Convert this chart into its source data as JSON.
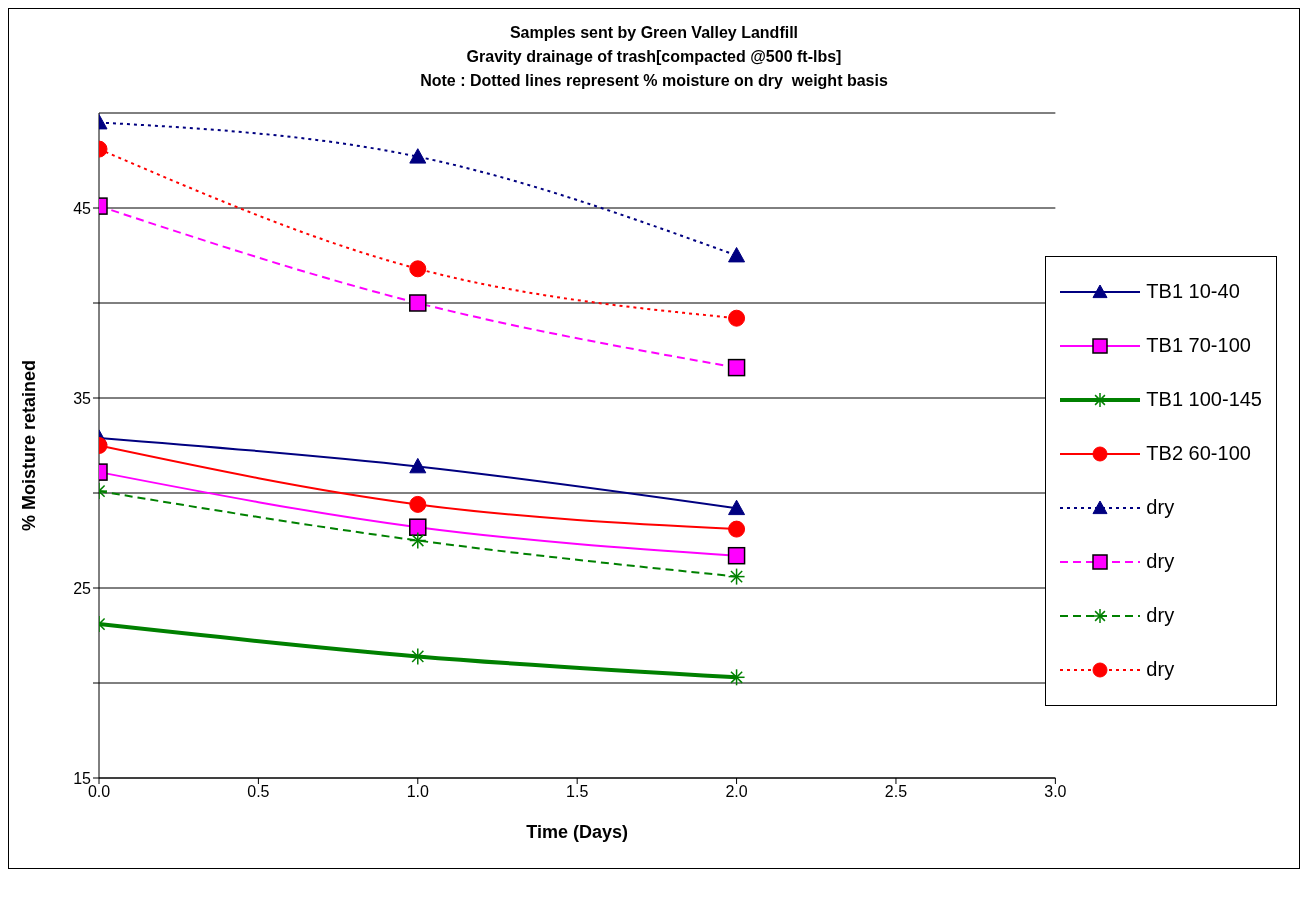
{
  "chart_data": {
    "type": "line",
    "title": "Samples sent by Green Valley Landfill",
    "subtitle": "Gravity drainage of trash[compacted @500 ft-lbs]",
    "annotations": [
      "Note : Dotted lines represent % moisture on dry  weight basis"
    ],
    "xlabel": "Time (Days)",
    "ylabel": "% Moisture retained",
    "x": [
      0,
      1,
      2
    ],
    "series": [
      {
        "name": "TB1 10-40",
        "color": "#000080",
        "marker": "triangle",
        "line_style": "solid",
        "values": [
          32.9,
          31.4,
          29.2
        ]
      },
      {
        "name": "TB1 70-100",
        "color": "#ff00ff",
        "marker": "square",
        "line_style": "solid",
        "values": [
          31.1,
          28.2,
          26.7
        ]
      },
      {
        "name": "TB1 100-145",
        "color": "#008000",
        "marker": "cross",
        "line_style": "solid",
        "values": [
          23.1,
          21.4,
          20.3
        ]
      },
      {
        "name": "TB2 60-100",
        "color": "#ff0000",
        "marker": "circle",
        "line_style": "solid",
        "values": [
          32.5,
          29.4,
          28.1
        ]
      },
      {
        "name": "dry",
        "color": "#000080",
        "marker": "triangle",
        "line_style": "dotted",
        "values": [
          49.5,
          47.7,
          42.5
        ]
      },
      {
        "name": "dry",
        "color": "#ff00ff",
        "marker": "square",
        "line_style": "dashed",
        "values": [
          45.1,
          40.0,
          36.6
        ]
      },
      {
        "name": "dry",
        "color": "#008000",
        "marker": "cross",
        "line_style": "dashed",
        "values": [
          30.1,
          27.5,
          25.6
        ]
      },
      {
        "name": "dry",
        "color": "#ff0000",
        "marker": "circle",
        "line_style": "dotted",
        "values": [
          48.1,
          41.8,
          39.2
        ]
      }
    ],
    "xlim": [
      0,
      3
    ],
    "xticks": [
      {
        "value": 0,
        "label": "0.0"
      },
      {
        "value": 0.5,
        "label": "0.5"
      },
      {
        "value": 1,
        "label": "1.0"
      },
      {
        "value": 1.5,
        "label": "1.5"
      },
      {
        "value": 2,
        "label": "2.0"
      },
      {
        "value": 2.5,
        "label": "2.5"
      },
      {
        "value": 3,
        "label": "3.0"
      }
    ],
    "ylim": [
      15,
      50
    ],
    "yticks": [
      15,
      {
        "value": 20,
        "label": null
      },
      25,
      {
        "value": 30,
        "label": null
      },
      35,
      {
        "value": 40,
        "label": null
      },
      45
    ],
    "grid": "y",
    "legend": "right"
  }
}
